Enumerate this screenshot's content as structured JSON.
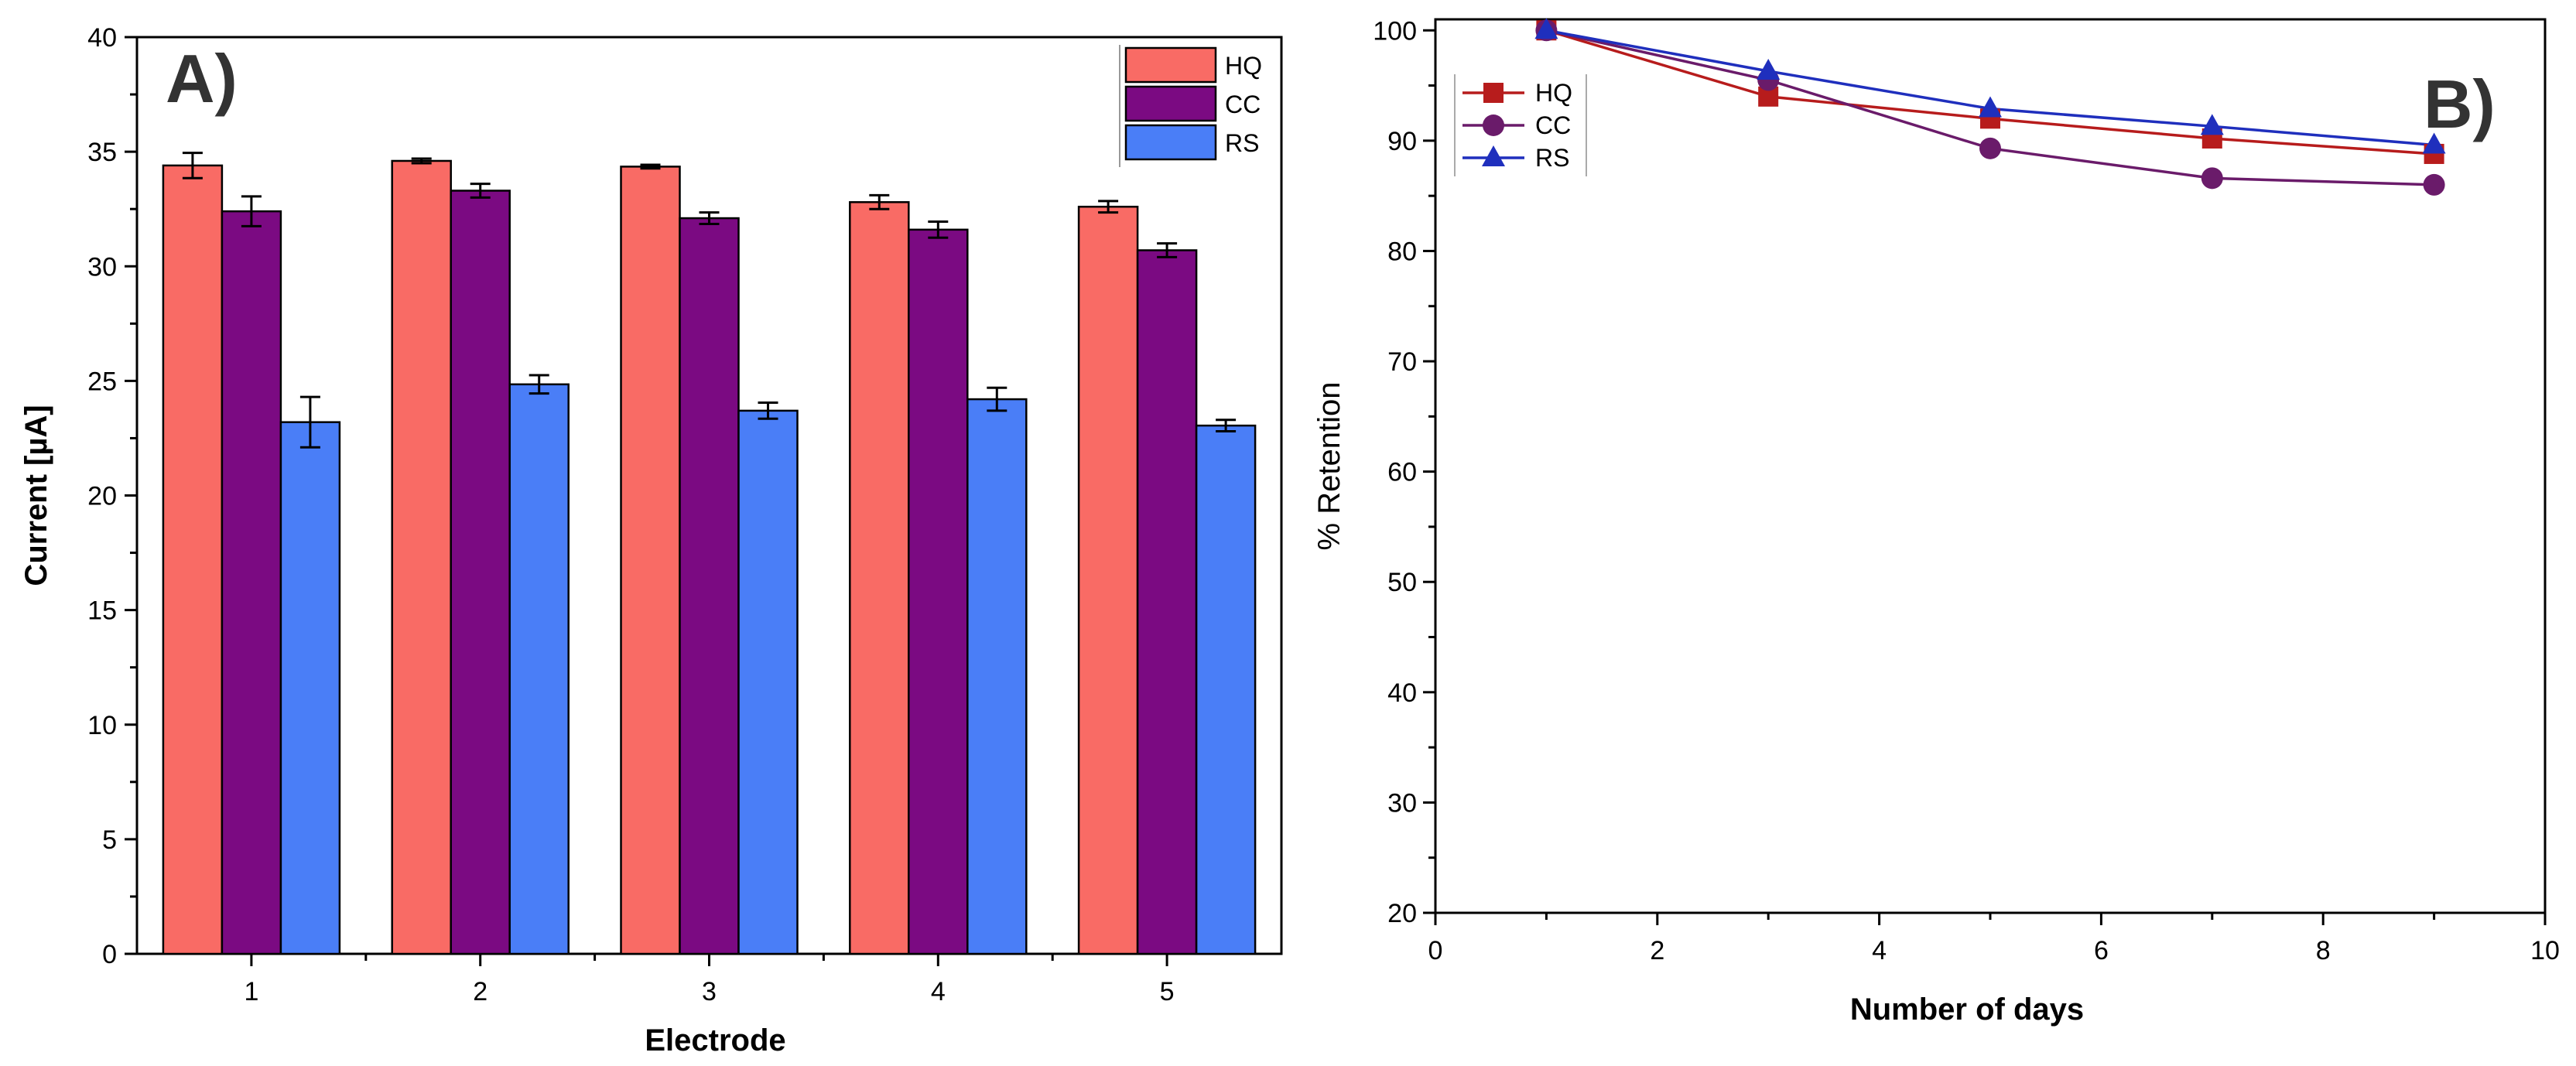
{
  "chart_data": [
    {
      "type": "bar",
      "panel_label": "A)",
      "xlabel": "Electrode",
      "ylabel": "Current [µA]",
      "categories": [
        "1",
        "2",
        "3",
        "4",
        "5"
      ],
      "ylim": [
        0,
        40
      ],
      "yticks": [
        0,
        5,
        10,
        15,
        20,
        25,
        30,
        35,
        40
      ],
      "legend_position": "top-right",
      "series": [
        {
          "name": "HQ",
          "color": "#f96b65",
          "values": [
            34.4,
            34.6,
            34.35,
            32.8,
            32.6
          ],
          "errors": [
            0.55,
            0.1,
            0.08,
            0.3,
            0.25
          ]
        },
        {
          "name": "CC",
          "color": "#7b0a82",
          "values": [
            32.4,
            33.3,
            32.1,
            31.6,
            30.7
          ],
          "errors": [
            0.65,
            0.3,
            0.25,
            0.35,
            0.3
          ]
        },
        {
          "name": "RS",
          "color": "#4a7ef7",
          "values": [
            23.2,
            24.85,
            23.7,
            24.2,
            23.05
          ],
          "errors": [
            1.1,
            0.4,
            0.35,
            0.5,
            0.25
          ]
        }
      ]
    },
    {
      "type": "line",
      "panel_label": "B)",
      "xlabel": "Number of days",
      "ylabel": "% Retention",
      "xlim": [
        0,
        10
      ],
      "ylim": [
        20,
        101
      ],
      "xticks": [
        0,
        2,
        4,
        6,
        8,
        10
      ],
      "yticks": [
        20,
        30,
        40,
        50,
        60,
        70,
        80,
        90,
        100
      ],
      "legend_position": "top-left",
      "x": [
        1,
        3,
        5,
        7,
        9
      ],
      "series": [
        {
          "name": "HQ",
          "color": "#b71c1c",
          "marker": "square",
          "values": [
            100,
            94,
            92,
            90.2,
            88.8
          ]
        },
        {
          "name": "CC",
          "color": "#6a1b6a",
          "marker": "circle",
          "values": [
            100,
            95.5,
            89.3,
            86.6,
            86.0
          ]
        },
        {
          "name": "RS",
          "color": "#1f2fbd",
          "marker": "triangle",
          "values": [
            100,
            96.3,
            92.9,
            91.3,
            89.6
          ]
        }
      ]
    }
  ]
}
